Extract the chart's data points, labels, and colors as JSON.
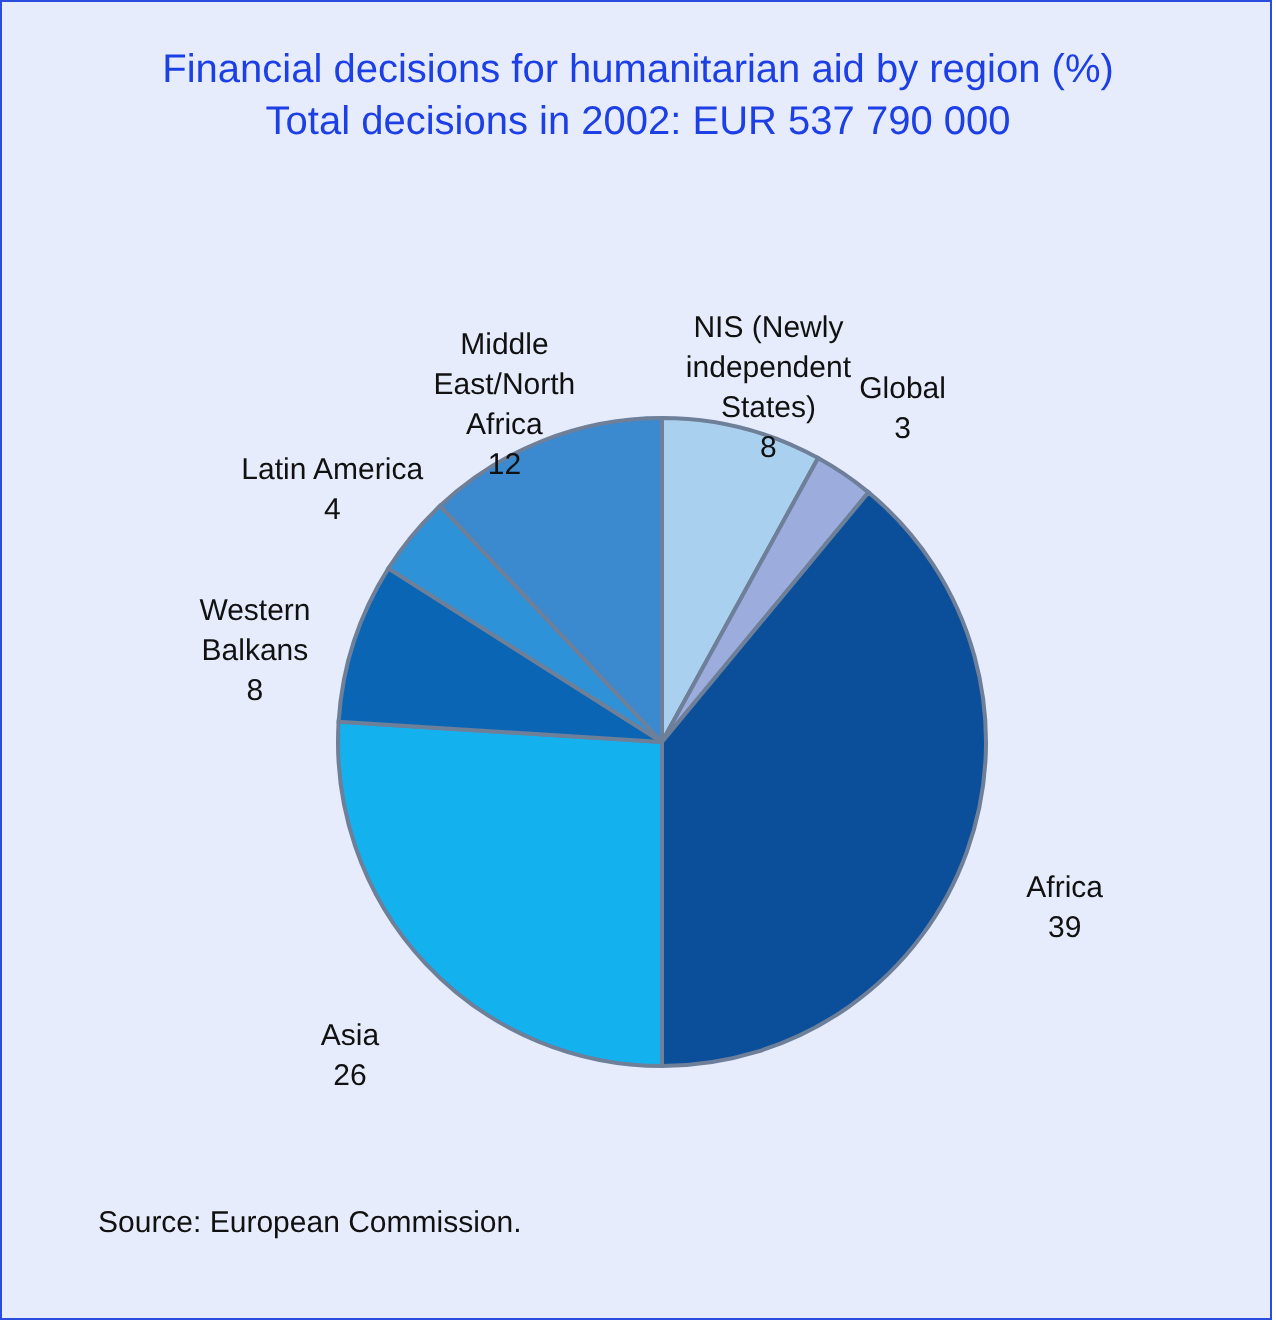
{
  "chart_data": {
    "type": "pie",
    "title": "Financial decisions for humanitarian aid by region (%)",
    "subtitle": "Total decisions in 2002: EUR 537 790 000",
    "categories": [
      "NIS (Newly independent States)",
      "Global",
      "Africa",
      "Asia",
      "Western Balkans",
      "Latin America",
      "Middle East/North Africa"
    ],
    "values": [
      8,
      3,
      39,
      26,
      8,
      4,
      12
    ],
    "colors": [
      "#a9d1ef",
      "#9cacdc",
      "#0b4f9b",
      "#14b1ef",
      "#0a66b4",
      "#2e92d8",
      "#3b89cf"
    ],
    "data_labels": true,
    "annotations": [
      "Source: European Commission."
    ]
  }
}
